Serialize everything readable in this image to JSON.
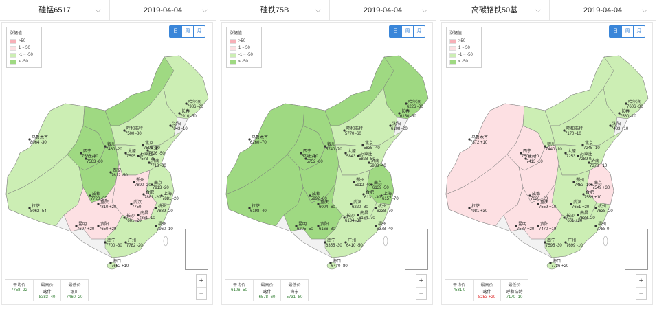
{
  "colors": {
    "up_strong": "#f7b0b8",
    "up_light": "#fde0e3",
    "down_light": "#cceeb4",
    "down_strong": "#9fd982",
    "border": "#8a8a8a"
  },
  "panels": [
    {
      "product": "硅锰6517",
      "date": "2019-04-04",
      "legend": {
        "title": "涨幅值",
        "items": [
          ">50",
          "1 ~ 50",
          "-1 ~ -50",
          "< -50"
        ]
      },
      "periods": [
        {
          "label": "日",
          "active": true
        },
        {
          "label": "周",
          "active": false
        },
        {
          "label": "月",
          "active": false
        }
      ],
      "stats": {
        "avg_label": "平均价",
        "avg_value": "7758 -22",
        "max_label": "最高价",
        "max_city": "喀什",
        "max_value": "8383 -40",
        "min_label": "最低价",
        "min_city": "银川",
        "min_value": "7460 -20"
      },
      "cities": [
        {
          "name": "乌鲁木齐",
          "value": "8064 -30"
        },
        {
          "name": "拉萨",
          "value": "8062 -54"
        },
        {
          "name": "哈尔滨",
          "value": "7986 -20"
        },
        {
          "name": "长春",
          "value": "7910 -50"
        },
        {
          "name": "沈阳",
          "value": "7843 -10"
        },
        {
          "name": "呼和浩特",
          "value": "7500 -80"
        },
        {
          "name": "银川",
          "value": "7460 -20"
        },
        {
          "name": "兰州",
          "value": "7563 -60"
        },
        {
          "name": "西宁",
          "value": "7580 -20"
        },
        {
          "name": "太原",
          "value": "7595 -40"
        },
        {
          "name": "北京",
          "value": "7595 -30"
        },
        {
          "name": "天津",
          "value": "7626 -50"
        },
        {
          "name": "石家庄",
          "value": "7573 -35"
        },
        {
          "name": "济南",
          "value": "7713 -30"
        },
        {
          "name": "西安",
          "value": "7612 -50"
        },
        {
          "name": "郑州",
          "value": "7890 -20"
        },
        {
          "name": "南京",
          "value": "7913 -20"
        },
        {
          "name": "合肥",
          "value": "7881 -20"
        },
        {
          "name": "上海",
          "value": "7881 -20"
        },
        {
          "name": "成都",
          "value": "7720 -35"
        },
        {
          "name": "重庆",
          "value": "7810 +20"
        },
        {
          "name": "武汉",
          "value": "7750"
        },
        {
          "name": "杭州",
          "value": "7889 -20"
        },
        {
          "name": "长沙",
          "value": "7661 -20"
        },
        {
          "name": "南昌",
          "value": "7861 -10"
        },
        {
          "name": "福州",
          "value": "7960 -10"
        },
        {
          "name": "昆明",
          "value": "7697 +20"
        },
        {
          "name": "贵阳",
          "value": "7650 +20"
        },
        {
          "name": "南宁",
          "value": "7700 -30"
        },
        {
          "name": "广州",
          "value": "7782 -20"
        },
        {
          "name": "海口",
          "value": "7662 +10"
        }
      ]
    },
    {
      "product": "硅铁75B",
      "date": "2019-04-04",
      "legend": {
        "title": "涨幅值",
        "items": [
          ">50",
          "1 ~ 50",
          "-1 ~ -50",
          "< -50"
        ]
      },
      "periods": [
        {
          "label": "日",
          "active": true
        },
        {
          "label": "周",
          "active": false
        },
        {
          "label": "月",
          "active": false
        }
      ],
      "stats": {
        "avg_label": "平均价",
        "avg_value": "6106 -50",
        "max_label": "最高价",
        "max_city": "喀什",
        "max_value": "6578 -60",
        "min_label": "最低价",
        "min_city": "海东",
        "min_value": "5731 -80"
      },
      "cities": [
        {
          "name": "乌鲁木齐",
          "value": "6260 -70"
        },
        {
          "name": "拉萨",
          "value": "6198 -40"
        },
        {
          "name": "哈尔滨",
          "value": "6226 -30"
        },
        {
          "name": "长春",
          "value": "6150 -80"
        },
        {
          "name": "沈阳",
          "value": "6108 -20"
        },
        {
          "name": "呼和浩特",
          "value": "5770 -60"
        },
        {
          "name": "银川",
          "value": "5740 -70"
        },
        {
          "name": "西宁",
          "value": "5741 -70"
        },
        {
          "name": "兰州",
          "value": "5752 -60"
        },
        {
          "name": "北京",
          "value": "5835 -40"
        },
        {
          "name": "石家庄",
          "value": "5828 -50"
        },
        {
          "name": "太原",
          "value": "5843 -50"
        },
        {
          "name": "济南",
          "value": "5983 -40"
        },
        {
          "name": "郑州",
          "value": "5912 -40"
        },
        {
          "name": "合肥",
          "value": "6131 -30"
        },
        {
          "name": "南京",
          "value": "6139 -50"
        },
        {
          "name": "上海",
          "value": "6157 -70"
        },
        {
          "name": "武汉",
          "value": "6220 -80"
        },
        {
          "name": "成都",
          "value": "5992 -60"
        },
        {
          "name": "重庆",
          "value": "6004 -60"
        },
        {
          "name": "长沙",
          "value": "6164 -30"
        },
        {
          "name": "杭州",
          "value": "6238 -70"
        },
        {
          "name": "南昌",
          "value": "6164 -70"
        },
        {
          "name": "福州",
          "value": "6378 -40"
        },
        {
          "name": "昆明",
          "value": "6205 -50"
        },
        {
          "name": "贵阳",
          "value": "6166 -80"
        },
        {
          "name": "南宁",
          "value": "6355 -30"
        },
        {
          "name": "广州",
          "value": "6410 -50"
        },
        {
          "name": "海口",
          "value": "6470 -80"
        }
      ]
    },
    {
      "product": "高碳铬铁50基",
      "date": "2019-04-04",
      "legend": {
        "title": "涨幅值",
        "items": [
          ">50",
          "1 ~ 50",
          "-1 ~ -50",
          "< -50"
        ]
      },
      "periods": [
        {
          "label": "日",
          "active": true
        },
        {
          "label": "周",
          "active": false
        },
        {
          "label": "月",
          "active": false
        }
      ],
      "stats": {
        "avg_label": "平均价",
        "avg_value": "7531 0",
        "max_label": "最高价",
        "max_city": "喀什",
        "max_value": "8253 +20",
        "min_label": "最低价",
        "min_city": "呼和浩特",
        "min_value": "7170 -10"
      },
      "cities": [
        {
          "name": "乌鲁木齐",
          "value": "7872 +10"
        },
        {
          "name": "拉萨",
          "value": "7981 +30"
        },
        {
          "name": "哈尔滨",
          "value": "7606 -30"
        },
        {
          "name": "长春",
          "value": "7560 -10"
        },
        {
          "name": "沈阳",
          "value": "7483 +10"
        },
        {
          "name": "呼和浩特",
          "value": "7170 -10"
        },
        {
          "name": "银川",
          "value": "7440 -10"
        },
        {
          "name": "西宁",
          "value": "7504 +20"
        },
        {
          "name": "兰州",
          "value": "7413 -10"
        },
        {
          "name": "北京",
          "value": "7245 -10"
        },
        {
          "name": "石家庄",
          "value": "7289 0"
        },
        {
          "name": "太原",
          "value": "7253 -10"
        },
        {
          "name": "济南",
          "value": "7373 +10"
        },
        {
          "name": "郑州",
          "value": "7453 -10"
        },
        {
          "name": "合肥",
          "value": "7559 +10"
        },
        {
          "name": "南京",
          "value": "7549 +30"
        },
        {
          "name": "杭州",
          "value": "7638 -20"
        },
        {
          "name": "武汉",
          "value": "7651 +20"
        },
        {
          "name": "成都",
          "value": "7620 +20"
        },
        {
          "name": "重庆",
          "value": "7559 +10"
        },
        {
          "name": "长沙",
          "value": "7651 +20"
        },
        {
          "name": "南昌",
          "value": "7638 -20"
        },
        {
          "name": "福州",
          "value": "7788 0"
        },
        {
          "name": "昆明",
          "value": "7587 +20"
        },
        {
          "name": "贵阳",
          "value": "7470 +10"
        },
        {
          "name": "南宁",
          "value": "7595 -30"
        },
        {
          "name": "广州",
          "value": "7699 -10"
        },
        {
          "name": "海口",
          "value": "7736 +20"
        }
      ]
    }
  ]
}
